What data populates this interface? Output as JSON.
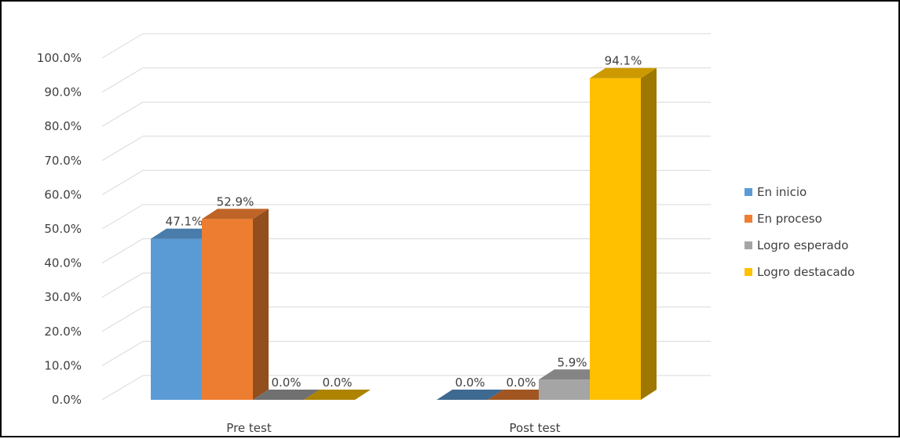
{
  "chart_data": {
    "type": "bar",
    "title": "",
    "xlabel": "",
    "ylabel": "",
    "categories": [
      "Pre test",
      "Post test"
    ],
    "series": [
      {
        "name": "En inicio",
        "values": [
          47.1,
          0.0
        ],
        "labels": [
          "47.1%",
          "0.0%"
        ],
        "color": "#5B9BD5"
      },
      {
        "name": "En proceso",
        "values": [
          52.9,
          0.0
        ],
        "labels": [
          "52.9%",
          "0.0%"
        ],
        "color": "#ED7D31"
      },
      {
        "name": "Logro esperado",
        "values": [
          0.0,
          5.9
        ],
        "labels": [
          "0.0%",
          "5.9%"
        ],
        "color": "#A5A5A5"
      },
      {
        "name": "Logro destacado",
        "values": [
          0.0,
          94.1
        ],
        "labels": [
          "0.0%",
          "94.1%"
        ],
        "color": "#FFC000"
      }
    ],
    "ylim": [
      0,
      100
    ],
    "y_ticks": [
      "0.0%",
      "10.0%",
      "20.0%",
      "30.0%",
      "40.0%",
      "50.0%",
      "60.0%",
      "70.0%",
      "80.0%",
      "90.0%",
      "100.0%"
    ],
    "grid": true,
    "three_d": true,
    "legend_position": "right"
  }
}
